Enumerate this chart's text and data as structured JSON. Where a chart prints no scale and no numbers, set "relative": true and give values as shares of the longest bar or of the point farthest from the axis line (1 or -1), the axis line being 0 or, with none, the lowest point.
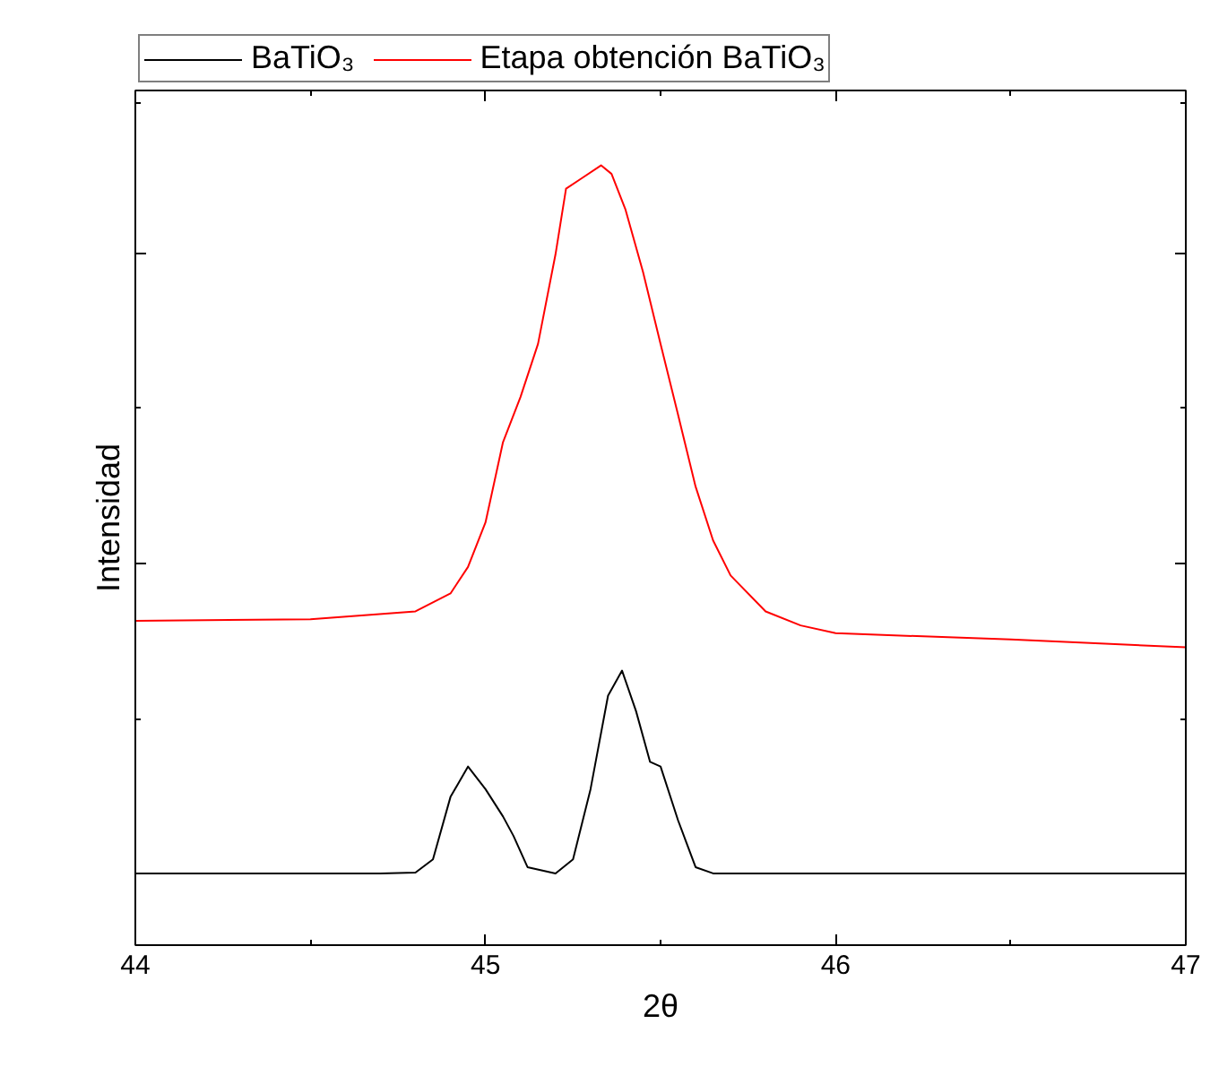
{
  "chart_data": {
    "type": "line",
    "relative": true,
    "xlabel": "2θ",
    "ylabel": "Intensidad",
    "xlim": [
      44,
      47
    ],
    "xticks": [
      44,
      45,
      46,
      47
    ],
    "grid": false,
    "legend": "top",
    "marker": "none",
    "line_style": "solid",
    "series": [
      {
        "name": "BaTiO₃",
        "color": "#000000",
        "x": [
          44,
          44.7,
          44.8,
          44.85,
          44.9,
          44.95,
          45.0,
          45.05,
          45.08,
          45.12,
          45.2,
          45.25,
          45.3,
          45.35,
          45.39,
          45.43,
          45.47,
          45.5,
          45.55,
          45.6,
          45.65,
          46,
          47
        ],
        "values": [
          0.092,
          0.092,
          0.093,
          0.11,
          0.19,
          0.229,
          0.2,
          0.165,
          0.14,
          0.1,
          0.092,
          0.11,
          0.2,
          0.32,
          0.352,
          0.3,
          0.235,
          0.229,
          0.16,
          0.1,
          0.092,
          0.092,
          0.092
        ]
      },
      {
        "name": "Etapa obtención BaTiO₃",
        "color": "#ff0000",
        "x": [
          44,
          44.5,
          44.8,
          44.9,
          44.95,
          45.0,
          45.05,
          45.1,
          45.15,
          45.2,
          45.23,
          45.27,
          45.33,
          45.36,
          45.4,
          45.45,
          45.5,
          45.55,
          45.6,
          45.65,
          45.7,
          45.8,
          45.9,
          46,
          46.5,
          47
        ],
        "values": [
          0.416,
          0.418,
          0.428,
          0.451,
          0.485,
          0.542,
          0.645,
          0.703,
          0.771,
          0.886,
          0.97,
          0.982,
          1.0,
          0.989,
          0.943,
          0.863,
          0.771,
          0.68,
          0.588,
          0.519,
          0.474,
          0.428,
          0.41,
          0.4,
          0.392,
          0.382
        ]
      }
    ]
  }
}
